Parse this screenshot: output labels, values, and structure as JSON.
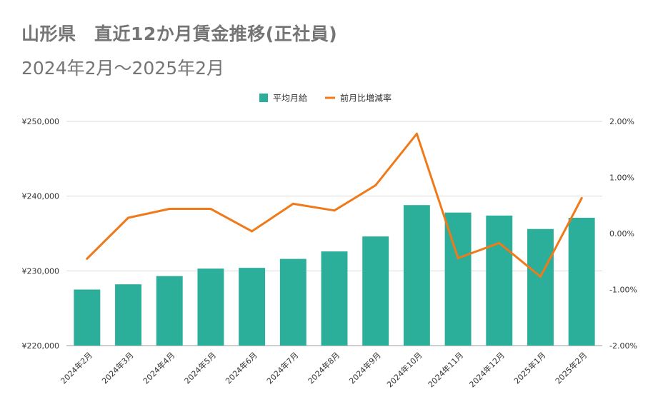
{
  "title": "山形県　直近12か月賃金推移(正社員)",
  "subtitle": "2024年2月～2025年2月",
  "colors": {
    "bar": "#2BAE9A",
    "line": "#F07A1A",
    "grid": "#D9D9D9",
    "title": "#757575",
    "text": "#333333"
  },
  "chart_data": {
    "type": "bar",
    "title": "山形県　直近12か月賃金推移(正社員)",
    "subtitle": "2024年2月～2025年2月",
    "legend_position": "top-center",
    "grid": true,
    "categories": [
      "2024年2月",
      "2024年3月",
      "2024年4月",
      "2024年5月",
      "2024年6月",
      "2024年7月",
      "2024年8月",
      "2024年9月",
      "2024年10月",
      "2024年11月",
      "2024年12月",
      "2025年1月",
      "2025年2月"
    ],
    "series": [
      {
        "name": "平均月給",
        "type": "bar",
        "axis": "left",
        "values": [
          227500,
          228200,
          229300,
          230300,
          230400,
          231600,
          232600,
          234600,
          238800,
          237800,
          237400,
          235600,
          237100
        ]
      },
      {
        "name": "前月比増減率",
        "type": "line",
        "axis": "right",
        "values": [
          -0.45,
          0.28,
          0.44,
          0.44,
          0.04,
          0.53,
          0.41,
          0.86,
          1.78,
          -0.44,
          -0.17,
          -0.77,
          0.63
        ]
      }
    ],
    "y_left": {
      "min": 220000,
      "max": 250000,
      "ticks": [
        220000,
        230000,
        240000,
        250000
      ],
      "tick_labels": [
        "¥220,000",
        "¥230,000",
        "¥240,000",
        "¥250,000"
      ]
    },
    "y_right": {
      "min": -2,
      "max": 2,
      "ticks": [
        -2,
        -1,
        0,
        1,
        2
      ],
      "tick_labels": [
        "-2.00%",
        "-1.00%",
        "0.00%",
        "1.00%",
        "2.00%"
      ]
    }
  }
}
